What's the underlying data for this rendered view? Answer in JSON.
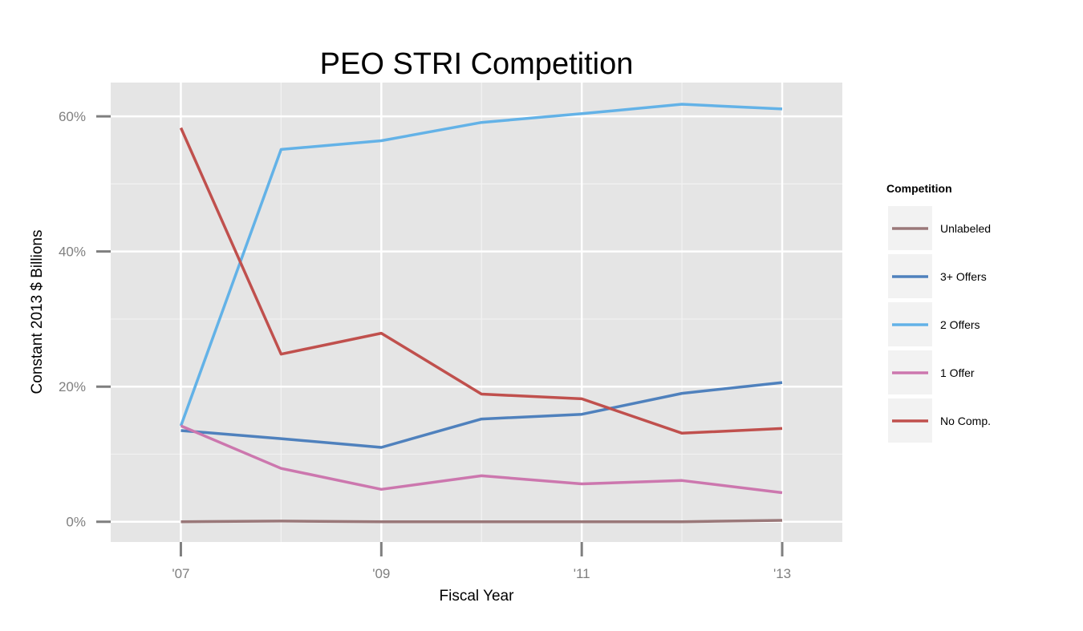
{
  "chart_data": {
    "type": "line",
    "title": "PEO STRI Competition",
    "xlabel": "Fiscal Year",
    "ylabel": "Constant 2013 $ Billions",
    "x": [
      2007,
      2008,
      2009,
      2010,
      2011,
      2012,
      2013
    ],
    "x_ticks": [
      {
        "value": 2007,
        "label": "'07"
      },
      {
        "value": 2009,
        "label": "'09"
      },
      {
        "value": 2011,
        "label": "'11"
      },
      {
        "value": 2013,
        "label": "'13"
      }
    ],
    "xlim": [
      2006.3,
      2013.6
    ],
    "y_ticks": [
      {
        "value": 0,
        "label": "0%"
      },
      {
        "value": 20,
        "label": "20%"
      },
      {
        "value": 40,
        "label": "40%"
      },
      {
        "value": 60,
        "label": "60%"
      }
    ],
    "ylim": [
      -3,
      65
    ],
    "grid": true,
    "legend": {
      "title": "Competition",
      "position": "right"
    },
    "series": [
      {
        "name": "Unlabeled",
        "color": "#9a7879",
        "values": [
          0.0,
          0.1,
          0.0,
          0.0,
          0.0,
          0.0,
          0.2
        ]
      },
      {
        "name": "3+ Offers",
        "color": "#4f81bd",
        "values": [
          13.5,
          12.3,
          11.0,
          15.2,
          15.9,
          19.0,
          20.6
        ]
      },
      {
        "name": "2 Offers",
        "color": "#63b2e7",
        "values": [
          14.2,
          55.1,
          56.4,
          59.1,
          60.4,
          61.8,
          61.1
        ]
      },
      {
        "name": "1 Offer",
        "color": "#cc77ae",
        "values": [
          14.2,
          7.9,
          4.8,
          6.8,
          5.6,
          6.1,
          4.3
        ]
      },
      {
        "name": "No Comp.",
        "color": "#c0504d",
        "values": [
          58.3,
          24.8,
          27.9,
          18.9,
          18.2,
          13.1,
          13.8
        ]
      }
    ]
  }
}
